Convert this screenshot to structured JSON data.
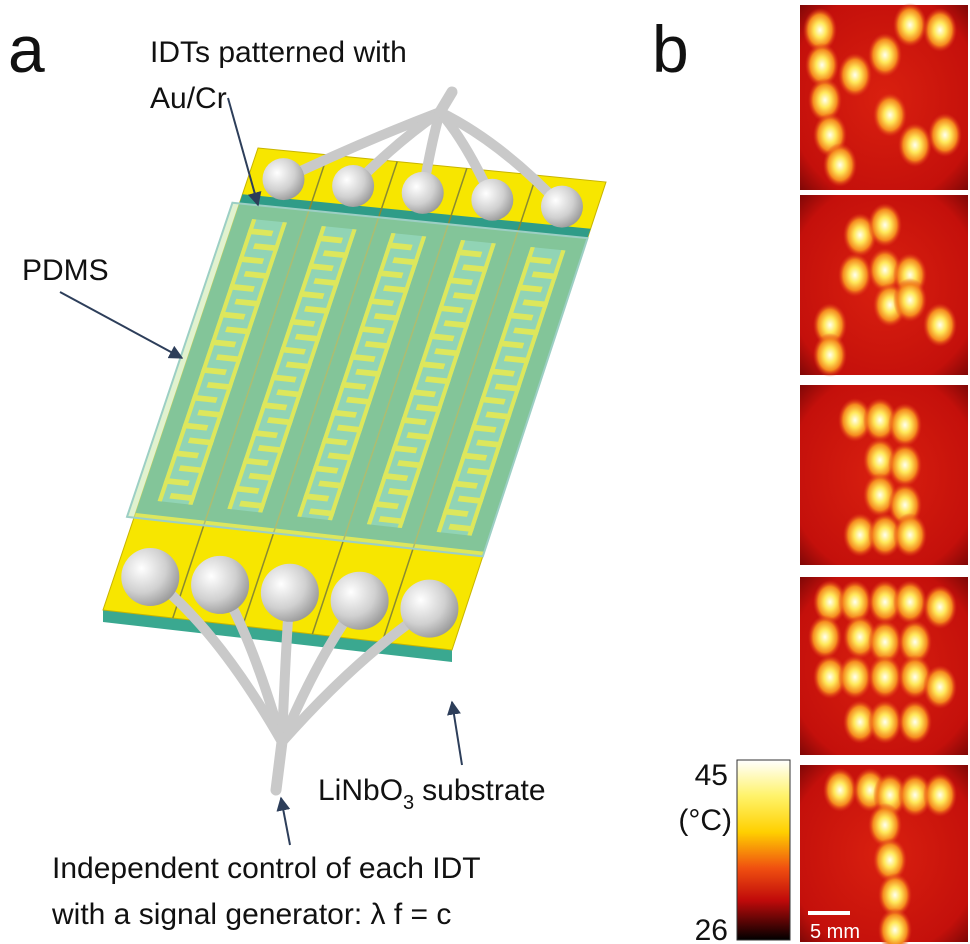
{
  "panel_labels": {
    "a": "a",
    "b": "b"
  },
  "labels": {
    "idts_line1": "IDTs patterned with",
    "idts_line2": "Au/Cr",
    "pdms": "PDMS",
    "substrate": {
      "formula": "LiNbO",
      "subscript": "3",
      "rest": "substrate"
    },
    "control_line1": "Independent control of each IDT",
    "control_line2": "with a signal generator: λ f = c"
  },
  "colorbar": {
    "max": 45,
    "unit": "(°C)",
    "min": 26
  },
  "scale_bar": "5 mm"
}
